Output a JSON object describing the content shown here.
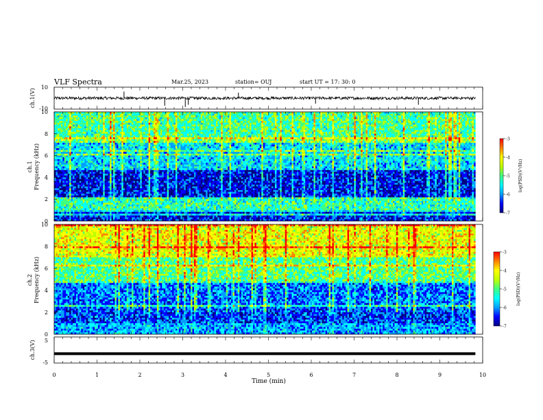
{
  "header": {
    "title": "VLF Spectra",
    "date": "Mar.25, 2023",
    "station": "station= OUJ",
    "start": "start  UT =   17: 30: 0"
  },
  "colors": {
    "colormap": [
      "#000080",
      "#0000ff",
      "#00a0ff",
      "#00ffff",
      "#40ff80",
      "#c0ff00",
      "#ffff00",
      "#ff8000",
      "#ff0000",
      "#ffffff"
    ],
    "trace": "#000000"
  },
  "chart_data": [
    {
      "type": "line",
      "name": "ch1-waveform",
      "ylabel": "ch.1(V)",
      "ylim": [
        -10,
        10
      ],
      "ytick_labels": [
        "10",
        "-10"
      ],
      "xlim": [
        0,
        10
      ],
      "baseline": 0,
      "noise_amplitude": 1.3,
      "spikes": [
        {
          "x": 1.63,
          "y": 6
        },
        {
          "x": 2.58,
          "y": -7
        },
        {
          "x": 3.06,
          "y": -8
        },
        {
          "x": 3.13,
          "y": -6
        },
        {
          "x": 4.3,
          "y": 5
        },
        {
          "x": 6.1,
          "y": -5
        },
        {
          "x": 8.5,
          "y": -6
        }
      ]
    },
    {
      "type": "heatmap",
      "name": "ch1-spectrogram",
      "ylabel": "ch.1\nFrequency (kHz)",
      "ylabel_line1": "ch.1",
      "ylabel_line2": "Frequency (kHz)",
      "xlim": [
        0,
        9.83
      ],
      "ylim": [
        0,
        10
      ],
      "ytick_labels": [
        "0",
        "2",
        "4",
        "6",
        "8",
        "10"
      ],
      "colorbar": {
        "label": "log(PSD)(V²/Hz)",
        "range": [
          -7,
          -3
        ],
        "tick_labels": [
          "-3",
          "-4",
          "-5",
          "-6",
          "-7"
        ]
      },
      "band_levels": [
        {
          "f_from": 0,
          "f_to": 1.0,
          "level": -6.3
        },
        {
          "f_from": 1.0,
          "f_to": 2.2,
          "level": -5.2
        },
        {
          "f_from": 2.2,
          "f_to": 4.6,
          "level": -6.4
        },
        {
          "f_from": 4.6,
          "f_to": 7.5,
          "level": -5.6
        },
        {
          "f_from": 7.5,
          "f_to": 10,
          "level": -5.1
        }
      ]
    },
    {
      "type": "heatmap",
      "name": "ch2-spectrogram",
      "ylabel": "ch.2\nFrequency (kHz)",
      "ylabel_line1": "ch.2",
      "ylabel_line2": "Frequency (kHz)",
      "xlim": [
        0,
        9.83
      ],
      "ylim": [
        0,
        10
      ],
      "ytick_labels": [
        "0",
        "2",
        "4",
        "6",
        "8",
        "10"
      ],
      "colorbar": {
        "label": "log(PSD)(V²/Hz)",
        "range": [
          -7,
          -3
        ],
        "tick_labels": [
          "-3",
          "-4",
          "-5",
          "-6",
          "-7"
        ]
      },
      "band_levels": [
        {
          "f_from": 0,
          "f_to": 1.0,
          "level": -5.8
        },
        {
          "f_from": 1.0,
          "f_to": 2.4,
          "level": -6.2
        },
        {
          "f_from": 2.4,
          "f_to": 4.8,
          "level": -6.0
        },
        {
          "f_from": 4.8,
          "f_to": 7.0,
          "level": -5.0
        },
        {
          "f_from": 7.0,
          "f_to": 10,
          "level": -4.3
        }
      ]
    },
    {
      "type": "line",
      "name": "ch3-waveform",
      "ylabel": "ch.3(V)",
      "ylim": [
        -5,
        5
      ],
      "ytick_labels": [
        "5",
        "-5"
      ],
      "xlim": [
        0,
        9.83
      ],
      "baseline": -1.4,
      "line_style": "thick-flat",
      "xlabel": "Time  (min)",
      "xtick_labels": [
        "0",
        "1",
        "2",
        "3",
        "4",
        "5",
        "6",
        "7",
        "8",
        "9",
        "10"
      ]
    }
  ]
}
